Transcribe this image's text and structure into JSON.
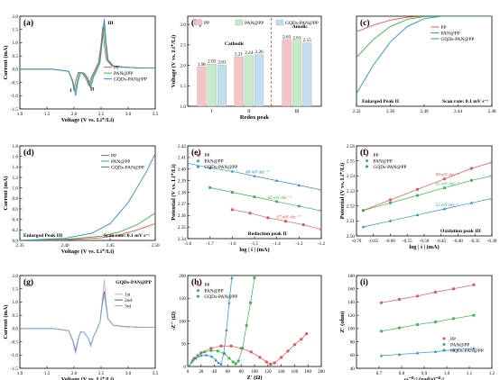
{
  "colors": {
    "pp": "#e8504e",
    "pan": "#35b34a",
    "gqds": "#2d8fc9",
    "black": "#000000",
    "bar_pp": "#f6c4c4",
    "bar_pan": "#c7ebc9",
    "bar_gqds": "#c2dfef"
  },
  "chart_data": [
    {
      "id": "a",
      "type": "line",
      "panel_label": "(a)",
      "xlabel": "Voltage (V vs. Li⁺/Li)",
      "ylabel": "Current (mA)",
      "xlim": [
        1.0,
        3.5
      ],
      "ylim": [
        -1.5,
        2.0
      ],
      "xticks": [
        "1.0",
        "1.5",
        "2.0",
        "2.5",
        "3.0",
        "3.5"
      ],
      "yticks": [
        "-1.5",
        "-1.0",
        "-0.5",
        "0.0",
        "0.5",
        "1.0",
        "1.5",
        "2.0"
      ],
      "annotations": [
        "I",
        "II",
        "III"
      ],
      "series": [
        {
          "name": "PP",
          "color": "pp",
          "x": [
            1.0,
            1.6,
            1.9,
            1.97,
            2.0,
            2.03,
            2.08,
            2.15,
            2.22,
            2.27,
            2.32,
            2.38,
            2.45,
            2.5,
            2.53,
            2.56,
            2.6,
            2.7,
            2.9,
            3.2,
            3.5
          ],
          "y": [
            0.0,
            0.0,
            -0.08,
            -0.45,
            -0.8,
            -0.45,
            -0.12,
            -0.15,
            -0.35,
            -0.6,
            -0.3,
            -0.05,
            0.25,
            0.95,
            1.6,
            0.9,
            0.35,
            0.12,
            0.08,
            0.05,
            0.05
          ]
        },
        {
          "name": "PAN@PP",
          "color": "pan",
          "x": [
            1.0,
            1.6,
            1.9,
            1.98,
            2.02,
            2.06,
            2.1,
            2.17,
            2.24,
            2.29,
            2.34,
            2.4,
            2.47,
            2.51,
            2.55,
            2.58,
            2.62,
            2.72,
            2.9,
            3.2,
            3.5
          ],
          "y": [
            0.0,
            0.0,
            -0.08,
            -0.45,
            -0.85,
            -0.45,
            -0.12,
            -0.15,
            -0.35,
            -0.65,
            -0.3,
            -0.05,
            0.25,
            1.0,
            1.75,
            1.0,
            0.35,
            0.12,
            0.08,
            0.05,
            0.05
          ]
        },
        {
          "name": "GQDs-PAN@PP",
          "color": "gqds",
          "x": [
            1.0,
            1.6,
            1.9,
            1.98,
            2.03,
            2.07,
            2.12,
            2.19,
            2.26,
            2.31,
            2.36,
            2.42,
            2.48,
            2.52,
            2.56,
            2.59,
            2.63,
            2.73,
            2.9,
            3.2,
            3.5
          ],
          "y": [
            0.0,
            0.0,
            -0.08,
            -0.5,
            -1.0,
            -0.5,
            -0.12,
            -0.15,
            -0.35,
            -0.7,
            -0.3,
            -0.05,
            0.25,
            1.0,
            1.9,
            1.05,
            0.35,
            0.12,
            0.08,
            0.05,
            0.05
          ]
        }
      ]
    },
    {
      "id": "b",
      "type": "bar",
      "panel_label": "(b)",
      "xlabel": "Redox peak",
      "ylabel": "Voltage (V vs. Li⁺/Li)",
      "ylim": [
        1.0,
        3.2
      ],
      "yticks": [
        "1.0",
        "1.5",
        "2.0",
        "2.5",
        "3.0"
      ],
      "categories": [
        "I",
        "II",
        "III"
      ],
      "texts": [
        "Cathodic",
        "Anodic"
      ],
      "series": [
        {
          "name": "PP",
          "color": "bar_pp",
          "values": [
            1.96,
            2.21,
            2.63
          ]
        },
        {
          "name": "PAN@PP",
          "color": "bar_pan",
          "values": [
            2.03,
            2.24,
            2.61
          ]
        },
        {
          "name": "GQDs-PAN@PP",
          "color": "bar_gqds",
          "values": [
            2.01,
            2.26,
            2.55
          ]
        }
      ],
      "value_labels": [
        [
          "1.96",
          "2.21",
          "2.63"
        ],
        [
          "2.03",
          "2.24",
          "2.61"
        ],
        [
          "2.01",
          "2.26",
          "2.55"
        ]
      ]
    },
    {
      "id": "c",
      "type": "line",
      "panel_label": "(c)",
      "xlabel": "",
      "ylabel": "",
      "xlim": [
        2.32,
        2.48
      ],
      "ylim": [
        -0.35,
        0.0
      ],
      "xticks": [
        "2.32",
        "2.36",
        "2.40",
        "2.44",
        "2.48"
      ],
      "texts": [
        "Enlarged Peak II",
        "Scan rate:  0.1 mV s⁻¹"
      ],
      "series": [
        {
          "name": "PP",
          "color": "pp",
          "x": [
            2.32,
            2.34,
            2.36,
            2.38,
            2.4,
            2.42,
            2.44,
            2.48
          ],
          "y": [
            -0.06,
            -0.035,
            -0.015,
            -0.004,
            0.0,
            0.0,
            0.0,
            0.0
          ]
        },
        {
          "name": "PAN@PP",
          "color": "pan",
          "x": [
            2.32,
            2.34,
            2.36,
            2.38,
            2.4,
            2.42,
            2.44,
            2.48
          ],
          "y": [
            -0.16,
            -0.09,
            -0.04,
            -0.012,
            -0.002,
            0.0,
            0.0,
            0.0
          ]
        },
        {
          "name": "GQDs-PAN@PP",
          "color": "gqds",
          "x": [
            2.32,
            2.34,
            2.36,
            2.38,
            2.4,
            2.42,
            2.44,
            2.48
          ],
          "y": [
            -0.3,
            -0.19,
            -0.1,
            -0.04,
            -0.01,
            0.0,
            0.0,
            0.0
          ]
        }
      ]
    },
    {
      "id": "d",
      "type": "line",
      "panel_label": "(d)",
      "xlabel": "Voltage (V vs. Li⁺/Li)",
      "ylabel": "Current (mA)",
      "xlim": [
        2.35,
        2.5
      ],
      "ylim": [
        0.0,
        1.8
      ],
      "xticks": [
        "2.35",
        "2.40",
        "2.45",
        "2.50"
      ],
      "yticks": [
        "0.0",
        "0.2",
        "0.4",
        "0.6",
        "0.8",
        "1.0",
        "1.2",
        "1.4",
        "1.6",
        "1.8"
      ],
      "texts": [
        "Enlarged Peak III",
        "Scan rate:  0.1 mV s⁻¹"
      ],
      "series": [
        {
          "name": "PP",
          "color": "pp",
          "x": [
            2.35,
            2.4,
            2.44,
            2.46,
            2.48,
            2.5
          ],
          "y": [
            0.0,
            0.01,
            0.05,
            0.1,
            0.2,
            0.32
          ]
        },
        {
          "name": "PAN@PP",
          "color": "pan",
          "x": [
            2.35,
            2.4,
            2.44,
            2.46,
            2.48,
            2.5
          ],
          "y": [
            0.0,
            0.02,
            0.08,
            0.16,
            0.3,
            0.52
          ]
        },
        {
          "name": "GQDs-PAN@PP",
          "color": "gqds",
          "x": [
            2.35,
            2.4,
            2.43,
            2.45,
            2.47,
            2.49,
            2.5
          ],
          "y": [
            0.0,
            0.04,
            0.14,
            0.32,
            0.72,
            1.3,
            1.65
          ]
        }
      ]
    },
    {
      "id": "e",
      "type": "scatter",
      "panel_label": "(e)",
      "xlabel": "log | i | (mA)",
      "ylabel": "Potential (V vs. Li⁺/Li)",
      "xlim": [
        -1.8,
        -1.2
      ],
      "ylim": [
        2.34,
        2.42
      ],
      "xticks": [
        "-1.8",
        "-1.7",
        "-1.6",
        "-1.5",
        "-1.4",
        "-1.3",
        "-1.2"
      ],
      "yticks": [
        "2.34",
        "2.35",
        "2.36",
        "2.37",
        "2.38",
        "2.39",
        "2.40",
        "2.41",
        "2.42"
      ],
      "texts": [
        "Reduction peak II"
      ],
      "series": [
        {
          "name": "PP",
          "color": "pp",
          "slope_label": "67 mV dec⁻¹",
          "x": [
            -1.6,
            -1.52,
            -1.44,
            -1.36,
            -1.28,
            -1.2
          ],
          "y": [
            2.365,
            2.362,
            2.358,
            2.355,
            2.352,
            2.348
          ]
        },
        {
          "name": "PAN@PP",
          "color": "pan",
          "slope_label": "66 mV dec⁻¹",
          "x": [
            -1.7,
            -1.6,
            -1.5,
            -1.4,
            -1.3,
            -1.2
          ],
          "y": [
            2.384,
            2.38,
            2.376,
            2.372,
            2.368,
            2.364
          ]
        },
        {
          "name": "GQDs-PAN@PP",
          "color": "gqds",
          "slope_label": "48 mV dec⁻¹",
          "x": [
            -1.8,
            -1.7,
            -1.6,
            -1.5,
            -1.4,
            -1.3,
            -1.2
          ],
          "y": [
            2.405,
            2.401,
            2.398,
            2.394,
            2.39,
            2.386,
            2.382
          ]
        }
      ]
    },
    {
      "id": "f",
      "type": "scatter",
      "panel_label": "(f)",
      "xlabel": "log | i | (mA)",
      "ylabel": "Potential (V vs. Li⁺/Li)",
      "xlim": [
        -0.7,
        -0.3
      ],
      "ylim": [
        2.5,
        2.56
      ],
      "xticks": [
        "-0.70",
        "-0.65",
        "-0.60",
        "-0.55",
        "-0.50",
        "-0.45",
        "-0.40",
        "-0.35",
        "-0.30"
      ],
      "yticks": [
        "2.50",
        "2.51",
        "2.52",
        "2.53",
        "2.54",
        "2.55",
        "2.56"
      ],
      "texts": [
        "Oxidation peak III"
      ],
      "series": [
        {
          "name": "PP",
          "color": "pp",
          "slope_label": "90 mV dec⁻¹",
          "x": [
            -0.68,
            -0.6,
            -0.52,
            -0.44,
            -0.36,
            -0.3
          ],
          "y": [
            2.517,
            2.524,
            2.531,
            2.538,
            2.545,
            2.549
          ]
        },
        {
          "name": "PAN@PP",
          "color": "pan",
          "slope_label": "61 mV dec⁻¹",
          "x": [
            -0.68,
            -0.6,
            -0.52,
            -0.44,
            -0.36,
            -0.3
          ],
          "y": [
            2.517,
            2.522,
            2.527,
            2.532,
            2.537,
            2.54
          ]
        },
        {
          "name": "GQDs-PAN@PP",
          "color": "gqds",
          "slope_label": "52 mV dec⁻¹",
          "x": [
            -0.68,
            -0.6,
            -0.52,
            -0.44,
            -0.36,
            -0.3
          ],
          "y": [
            2.506,
            2.51,
            2.514,
            2.518,
            2.522,
            2.525
          ]
        }
      ]
    },
    {
      "id": "g",
      "type": "line",
      "panel_label": "(g)",
      "title": "GQDs-PAN@PP",
      "xlabel": "Voltage (V vs. Li⁺/Li)",
      "ylabel": "Current (mA)",
      "xlim": [
        1.0,
        3.5
      ],
      "ylim": [
        -1.5,
        2.0
      ],
      "xticks": [
        "1.0",
        "1.5",
        "2.0",
        "2.5",
        "3.0",
        "3.5"
      ],
      "yticks": [
        "-1.5",
        "-1.0",
        "-0.5",
        "0.0",
        "0.5",
        "1.0",
        "1.5",
        "2.0"
      ],
      "series": [
        {
          "name": "1st",
          "color": "#e9a3c9",
          "x": [
            1.0,
            1.6,
            1.9,
            1.98,
            2.03,
            2.07,
            2.12,
            2.19,
            2.26,
            2.31,
            2.36,
            2.42,
            2.48,
            2.52,
            2.56,
            2.59,
            2.63,
            2.73,
            2.9,
            3.2,
            3.5
          ],
          "y": [
            0.0,
            0.0,
            -0.08,
            -0.5,
            -0.95,
            -0.5,
            -0.12,
            -0.15,
            -0.35,
            -0.6,
            -0.3,
            -0.05,
            0.25,
            1.0,
            1.85,
            1.05,
            0.35,
            0.12,
            0.08,
            0.05,
            0.05
          ]
        },
        {
          "name": "2nd",
          "color": "#5b4aa0",
          "x": [
            1.0,
            1.6,
            1.9,
            1.98,
            2.03,
            2.07,
            2.12,
            2.19,
            2.26,
            2.31,
            2.36,
            2.42,
            2.48,
            2.52,
            2.56,
            2.59,
            2.63,
            2.73,
            2.9,
            3.2,
            3.5
          ],
          "y": [
            0.0,
            0.0,
            -0.08,
            -0.45,
            -0.85,
            -0.45,
            -0.12,
            -0.15,
            -0.35,
            -0.65,
            -0.3,
            -0.05,
            0.25,
            0.9,
            1.4,
            0.9,
            0.35,
            0.12,
            0.08,
            0.05,
            0.05
          ]
        },
        {
          "name": "3rd",
          "color": "#7fb3d8",
          "x": [
            1.0,
            1.6,
            1.9,
            1.98,
            2.03,
            2.07,
            2.12,
            2.19,
            2.26,
            2.31,
            2.36,
            2.42,
            2.48,
            2.52,
            2.56,
            2.59,
            2.63,
            2.73,
            2.9,
            3.2,
            3.5
          ],
          "y": [
            0.0,
            0.0,
            -0.08,
            -0.45,
            -0.8,
            -0.45,
            -0.12,
            -0.15,
            -0.35,
            -0.65,
            -0.3,
            -0.05,
            0.25,
            0.85,
            1.3,
            0.85,
            0.35,
            0.12,
            0.08,
            0.05,
            0.05
          ]
        }
      ]
    },
    {
      "id": "h",
      "type": "scatter",
      "panel_label": "(h)",
      "xlabel": "Z' (Ω)",
      "ylabel": "-Z'' (Ω)",
      "xlim": [
        0,
        200
      ],
      "ylim": [
        0,
        200
      ],
      "xticks": [
        "0",
        "20",
        "40",
        "60",
        "80",
        "100",
        "120",
        "140",
        "160",
        "180",
        "200"
      ],
      "yticks": [
        "0",
        "50",
        "100",
        "150",
        "200"
      ],
      "series": [
        {
          "name": "PP",
          "color": "pp",
          "x": [
            2,
            10,
            20,
            35,
            50,
            65,
            80,
            95,
            108,
            118,
            124,
            130,
            140,
            150,
            160,
            170,
            178
          ],
          "y": [
            0,
            18,
            30,
            40,
            45,
            45,
            40,
            32,
            20,
            10,
            5,
            8,
            20,
            34,
            48,
            60,
            72
          ]
        },
        {
          "name": "PAN@PP",
          "color": "pan",
          "x": [
            2,
            8,
            15,
            25,
            35,
            45,
            55,
            62,
            68,
            72,
            76,
            82,
            88,
            94,
            100
          ],
          "y": [
            0,
            14,
            24,
            32,
            35,
            34,
            28,
            18,
            10,
            6,
            12,
            40,
            90,
            140,
            195
          ]
        },
        {
          "name": "GQDs-PAN@PP",
          "color": "gqds",
          "x": [
            2,
            6,
            12,
            20,
            28,
            36,
            42,
            46,
            50,
            54,
            58,
            62,
            66
          ],
          "y": [
            0,
            10,
            18,
            24,
            25,
            22,
            14,
            8,
            5,
            30,
            80,
            140,
            195
          ]
        }
      ]
    },
    {
      "id": "i",
      "type": "scatter",
      "panel_label": "(i)",
      "xlabel": "ω⁻⁰·⁵ (rad/s)⁻⁰·⁵",
      "ylabel": "Z' (ohm)",
      "xlim": [
        0.6,
        1.2
      ],
      "ylim": [
        40,
        180
      ],
      "xticks": [
        "0.7",
        "0.8",
        "0.9",
        "1.0",
        "1.1",
        "1.2"
      ],
      "yticks": [
        "40",
        "60",
        "80",
        "100",
        "120",
        "140",
        "160",
        "180"
      ],
      "series": [
        {
          "name": "PP",
          "color": "pp",
          "x": [
            0.71,
            0.79,
            0.87,
            0.95,
            1.03,
            1.12
          ],
          "y": [
            139,
            144,
            149,
            155,
            160,
            166
          ]
        },
        {
          "name": "PAN@PP",
          "color": "pan",
          "x": [
            0.71,
            0.79,
            0.87,
            0.95,
            1.03,
            1.12
          ],
          "y": [
            96,
            101,
            106,
            110,
            115,
            120
          ]
        },
        {
          "name": "GQDs-PAN@PP",
          "color": "gqds",
          "x": [
            0.71,
            0.79,
            0.87,
            0.95,
            1.03,
            1.12
          ],
          "y": [
            59,
            61,
            63,
            65,
            68,
            70
          ]
        }
      ]
    }
  ]
}
